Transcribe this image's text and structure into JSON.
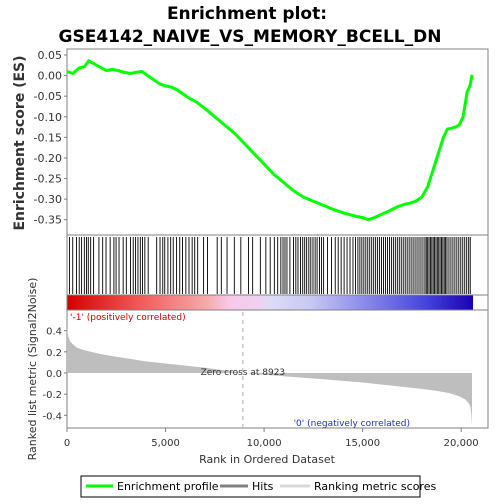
{
  "chart_data": {
    "type": "line",
    "title_line1": "Enrichment plot:",
    "title_line2": "GSE4142_NAIVE_VS_MEMORY_BCELL_DN",
    "top_ylabel": "Enrichment score (ES)",
    "bottom_ylabel": "Ranked list metric (Signal2Noise)",
    "xlabel": "Rank in Ordered Dataset",
    "xlim": [
      0,
      20600
    ],
    "x_ticks": [
      0,
      5000,
      10000,
      15000,
      20000
    ],
    "x_tick_labels": [
      "0",
      "5,000",
      "10,000",
      "15,000",
      "20,000"
    ],
    "es_ylim": [
      -0.375,
      0.05
    ],
    "es_ticks": [
      0.05,
      0.0,
      -0.05,
      -0.1,
      -0.15,
      -0.2,
      -0.25,
      -0.3,
      -0.35
    ],
    "es_tick_labels": [
      "0.05",
      "0.00",
      "-0.05",
      "-0.10",
      "-0.15",
      "-0.20",
      "-0.25",
      "-0.30",
      "-0.35"
    ],
    "metric_ylim": [
      -0.52,
      0.52
    ],
    "metric_ticks": [
      0.4,
      0.2,
      0.0,
      -0.2,
      -0.4
    ],
    "metric_tick_labels": [
      "0.4",
      "0.2",
      "0.0",
      "-0.2",
      "-0.4"
    ],
    "enrichment_profile": {
      "name": "Enrichment profile",
      "color": "#00ff00",
      "x": [
        0,
        300,
        600,
        900,
        1100,
        1400,
        1700,
        2000,
        2300,
        2600,
        2900,
        3200,
        3500,
        3800,
        4100,
        4400,
        4700,
        5000,
        5300,
        5600,
        5900,
        6200,
        6600,
        7000,
        7500,
        8000,
        8500,
        9000,
        9500,
        10000,
        10500,
        11000,
        11500,
        12000,
        12500,
        13000,
        13500,
        14000,
        14500,
        15000,
        15300,
        15600,
        15900,
        16200,
        16500,
        16800,
        17100,
        17400,
        17700,
        18000,
        18300,
        18500,
        18700,
        18900,
        19100,
        19300,
        19500,
        19700,
        19900,
        20100,
        20300,
        20450,
        20550
      ],
      "y": [
        0.01,
        0.005,
        0.018,
        0.022,
        0.036,
        0.028,
        0.02,
        0.012,
        0.015,
        0.012,
        0.008,
        0.005,
        0.008,
        0.01,
        0.0,
        -0.01,
        -0.02,
        -0.025,
        -0.028,
        -0.035,
        -0.045,
        -0.055,
        -0.065,
        -0.08,
        -0.1,
        -0.12,
        -0.14,
        -0.165,
        -0.19,
        -0.215,
        -0.24,
        -0.26,
        -0.28,
        -0.295,
        -0.305,
        -0.315,
        -0.325,
        -0.333,
        -0.34,
        -0.345,
        -0.35,
        -0.345,
        -0.338,
        -0.332,
        -0.325,
        -0.318,
        -0.313,
        -0.31,
        -0.305,
        -0.295,
        -0.27,
        -0.24,
        -0.21,
        -0.18,
        -0.15,
        -0.13,
        -0.128,
        -0.125,
        -0.12,
        -0.1,
        -0.04,
        -0.025,
        0.002
      ]
    },
    "hits": {
      "name": "Hits",
      "color": "#000000",
      "x": [
        130,
        290,
        480,
        620,
        740,
        880,
        990,
        1080,
        1200,
        1350,
        1620,
        1810,
        1980,
        2190,
        2380,
        2490,
        2640,
        2850,
        3010,
        3220,
        3360,
        3480,
        3600,
        3720,
        3830,
        3950,
        4120,
        4550,
        4720,
        4860,
        4960,
        5120,
        5260,
        5390,
        5560,
        5720,
        5860,
        6030,
        6190,
        6350,
        6480,
        6630,
        6930,
        7130,
        7620,
        7830,
        8120,
        8490,
        8820,
        9210,
        9420,
        9810,
        10090,
        10310,
        10520,
        10690,
        10850,
        10960,
        11060,
        11160,
        11310,
        11490,
        11610,
        11720,
        11850,
        11960,
        12060,
        12160,
        12270,
        12370,
        12480,
        12590,
        12690,
        12810,
        12910,
        13020,
        13220,
        13420,
        13610,
        13760,
        13910,
        14060,
        14210,
        14360,
        14510,
        14640,
        14760,
        14860,
        14960,
        15060,
        15160,
        15260,
        15360,
        15460,
        15560,
        15660,
        15760,
        15860,
        15960,
        16060,
        16160,
        16260,
        16360,
        16460,
        16560,
        16660,
        16760,
        16860,
        16960,
        17060,
        17160,
        17260,
        17360,
        17460,
        17560,
        17660,
        17760,
        17860,
        17960,
        18060,
        18160,
        18230,
        18300,
        18370,
        18440,
        18510,
        18580,
        18650,
        18720,
        18790,
        18860,
        18930,
        19000,
        19070,
        19140,
        19210,
        19280,
        19380,
        19480,
        19580,
        19680,
        19780,
        19880,
        19980,
        20080,
        20180,
        20280,
        20380,
        20460
      ]
    },
    "ranking_metric": {
      "name": "Ranking metric scores",
      "color": "#bebebe",
      "x": [
        0,
        20,
        60,
        150,
        300,
        500,
        800,
        1200,
        1700,
        2300,
        3000,
        4000,
        5000,
        6000,
        7000,
        8000,
        8923,
        10000,
        11000,
        12000,
        13000,
        14000,
        15000,
        16000,
        17000,
        18000,
        18800,
        19400,
        19900,
        20200,
        20400,
        20480,
        20520,
        20550
      ],
      "y": [
        0.44,
        0.4,
        0.35,
        0.3,
        0.27,
        0.24,
        0.22,
        0.2,
        0.18,
        0.16,
        0.14,
        0.11,
        0.09,
        0.07,
        0.05,
        0.025,
        0.0,
        -0.015,
        -0.03,
        -0.045,
        -0.06,
        -0.075,
        -0.09,
        -0.11,
        -0.13,
        -0.15,
        -0.17,
        -0.19,
        -0.22,
        -0.25,
        -0.29,
        -0.33,
        -0.4,
        -0.5
      ]
    },
    "zero_cross": 8923,
    "zero_cross_label": "Zero cross at 8923",
    "pos_label": "'-1' (positively correlated)",
    "neg_label": "'0' (negatively correlated)",
    "legend": {
      "placement": "bottom",
      "enrichment_label": "Enrichment profile",
      "hits_label": "Hits",
      "metric_label": "Ranking metric scores"
    }
  }
}
